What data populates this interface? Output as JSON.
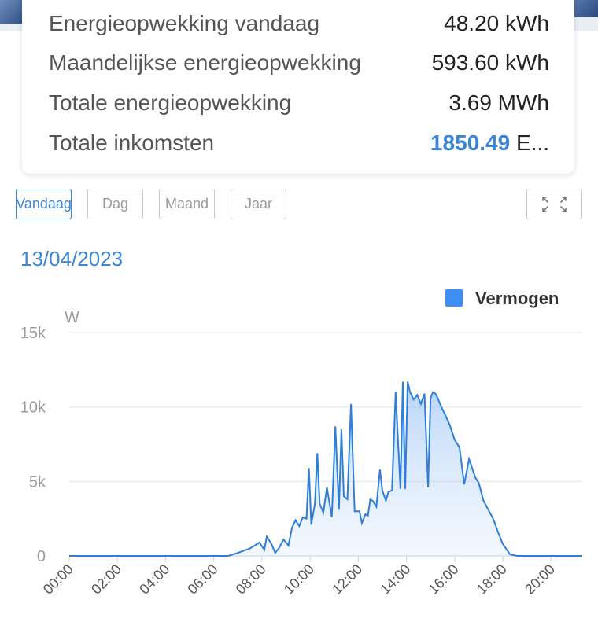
{
  "summary": {
    "rows": [
      {
        "label": "Energieopwekking vandaag",
        "value": "48.20 kWh"
      },
      {
        "label": "Maandelijkse energieopwekking",
        "value": "593.60 kWh"
      },
      {
        "label": "Totale energieopwekking",
        "value": "3.69 MWh"
      },
      {
        "label": "Totale inkomsten",
        "value_accent": "1850.49",
        "value_rest": " E..."
      }
    ]
  },
  "tabs": [
    {
      "label": "Vandaag",
      "active": true
    },
    {
      "label": "Dag",
      "active": false
    },
    {
      "label": "Maand",
      "active": false
    },
    {
      "label": "Jaar",
      "active": false
    }
  ],
  "expand_icon": "expand-arrows-icon",
  "date": "13/04/2023",
  "colors": {
    "accent": "#3a86d4",
    "line": "#2f7fd8",
    "legend": "#3c8ef3"
  },
  "chart_data": {
    "type": "area",
    "title": "",
    "ylabel": "W",
    "xlabel": "",
    "ylim": [
      0,
      15000
    ],
    "xlim": [
      0,
      21.3
    ],
    "yticks": [
      0,
      5000,
      10000,
      15000
    ],
    "ytick_labels": [
      "0",
      "5k",
      "10k",
      "15k"
    ],
    "xticks": [
      0,
      2,
      4,
      6,
      8,
      10,
      12,
      14,
      16,
      18,
      20
    ],
    "xtick_labels": [
      "00:00",
      "02:00",
      "04:00",
      "06:00",
      "08:00",
      "10:00",
      "12:00",
      "14:00",
      "16:00",
      "18:00",
      "20:00"
    ],
    "grid": true,
    "legend_position": "top-right",
    "series": [
      {
        "name": "Vermogen",
        "x": [
          0,
          6.6,
          7.0,
          7.5,
          7.9,
          8.1,
          8.2,
          8.4,
          8.55,
          8.7,
          8.9,
          9.1,
          9.25,
          9.4,
          9.55,
          9.7,
          9.85,
          9.95,
          10.05,
          10.2,
          10.3,
          10.4,
          10.55,
          10.7,
          10.9,
          11.05,
          11.2,
          11.3,
          11.4,
          11.55,
          11.7,
          11.85,
          12.05,
          12.15,
          12.3,
          12.4,
          12.5,
          12.6,
          12.75,
          12.9,
          13.0,
          13.15,
          13.25,
          13.4,
          13.55,
          13.75,
          13.85,
          13.95,
          14.05,
          14.15,
          14.3,
          14.45,
          14.6,
          14.75,
          14.9,
          15.0,
          15.1,
          15.2,
          15.3,
          15.45,
          15.6,
          15.8,
          16.0,
          16.2,
          16.4,
          16.6,
          16.75,
          16.85,
          17.0,
          17.2,
          17.4,
          17.6,
          17.8,
          18.0,
          18.3,
          18.6,
          18.9,
          19.2,
          19.5,
          19.8,
          20.1,
          20.4,
          20.7,
          21.1,
          21.3
        ],
        "y": [
          0,
          0,
          200,
          500,
          900,
          400,
          1300,
          800,
          200,
          500,
          1100,
          700,
          1900,
          2400,
          2000,
          2600,
          2500,
          5900,
          2100,
          3500,
          6900,
          3500,
          2900,
          4600,
          2600,
          8700,
          3100,
          8500,
          4000,
          3800,
          10200,
          3000,
          3000,
          2200,
          2800,
          2700,
          3800,
          3700,
          3300,
          5800,
          4400,
          3700,
          4300,
          4400,
          11000,
          4500,
          11700,
          4500,
          11700,
          11000,
          10500,
          10800,
          10200,
          10900,
          4600,
          10600,
          11000,
          10900,
          10600,
          10000,
          9500,
          8800,
          7800,
          7300,
          4800,
          6500,
          5800,
          5300,
          4900,
          3700,
          3100,
          2500,
          1600,
          800,
          100,
          0,
          0,
          0,
          0,
          0,
          0,
          0,
          0,
          0,
          0
        ]
      }
    ]
  }
}
